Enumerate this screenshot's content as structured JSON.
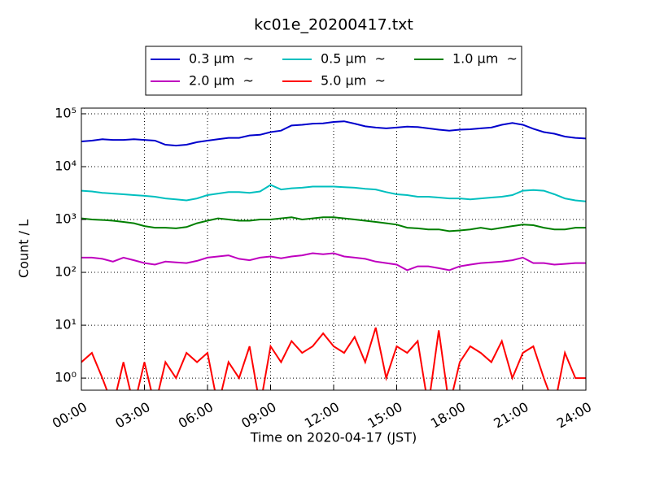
{
  "chart_data": {
    "type": "line",
    "title": "kc01e_20200417.txt",
    "x_label": "Time on 2020-04-17 (JST)",
    "y_label": "Count / L",
    "log_y": true,
    "grid": true,
    "legend": "upper center",
    "xlim": [
      0,
      24
    ],
    "xticks": [
      {
        "value": 0,
        "label": "00:00"
      },
      {
        "value": 3,
        "label": "03:00"
      },
      {
        "value": 6,
        "label": "06:00"
      },
      {
        "value": 9,
        "label": "09:00"
      },
      {
        "value": 12,
        "label": "12:00"
      },
      {
        "value": 15,
        "label": "15:00"
      },
      {
        "value": 18,
        "label": "18:00"
      },
      {
        "value": 21,
        "label": "21:00"
      },
      {
        "value": 24,
        "label": "24:00"
      }
    ],
    "ylim": [
      0.59,
      128000
    ],
    "yticks": [
      {
        "value": 1,
        "label": "10⁰"
      },
      {
        "value": 10,
        "label": "10¹"
      },
      {
        "value": 100,
        "label": "10²"
      },
      {
        "value": 1000,
        "label": "10³"
      },
      {
        "value": 10000,
        "label": "10⁴"
      },
      {
        "value": 100000,
        "label": "10⁵"
      }
    ],
    "x": [
      0,
      0.5,
      1,
      1.5,
      2,
      2.5,
      3,
      3.5,
      4,
      4.5,
      5,
      5.5,
      6,
      6.5,
      7,
      7.5,
      8,
      8.5,
      9,
      9.5,
      10,
      10.5,
      11,
      11.5,
      12,
      12.5,
      13,
      13.5,
      14,
      14.5,
      15,
      15.5,
      16,
      16.5,
      17,
      17.5,
      18,
      18.5,
      19,
      19.5,
      20,
      20.5,
      21,
      21.5,
      22,
      22.5,
      23,
      23.5,
      24
    ],
    "series": [
      {
        "name": "0.3 μm  ~",
        "color": "#0000cc",
        "values": [
          30000,
          31000,
          33000,
          32000,
          32000,
          33000,
          32000,
          31000,
          26000,
          25000,
          26000,
          29000,
          31000,
          33000,
          35000,
          35000,
          39000,
          40000,
          45000,
          48000,
          60000,
          62000,
          65000,
          66000,
          70000,
          72000,
          65000,
          58000,
          55000,
          53000,
          55000,
          57000,
          56000,
          53000,
          50000,
          48000,
          50000,
          51000,
          53000,
          55000,
          62000,
          67000,
          62000,
          52000,
          45000,
          42000,
          37000,
          35000,
          34000
        ]
      },
      {
        "name": "0.5 μm  ~",
        "color": "#00bfbf",
        "values": [
          3500,
          3400,
          3200,
          3100,
          3000,
          2900,
          2800,
          2700,
          2500,
          2400,
          2300,
          2500,
          2900,
          3100,
          3300,
          3300,
          3200,
          3400,
          4500,
          3700,
          3900,
          4000,
          4200,
          4200,
          4200,
          4100,
          4000,
          3800,
          3700,
          3300,
          3000,
          2900,
          2700,
          2700,
          2600,
          2500,
          2500,
          2400,
          2500,
          2600,
          2700,
          2900,
          3500,
          3600,
          3500,
          3000,
          2500,
          2300,
          2200
        ]
      },
      {
        "name": "1.0 μm  ~",
        "color": "#007f00",
        "values": [
          1050,
          1000,
          980,
          950,
          900,
          850,
          750,
          700,
          700,
          680,
          720,
          850,
          950,
          1050,
          1000,
          950,
          950,
          1000,
          1000,
          1050,
          1100,
          1000,
          1050,
          1100,
          1100,
          1050,
          1000,
          950,
          900,
          850,
          800,
          700,
          680,
          650,
          650,
          600,
          620,
          650,
          700,
          650,
          700,
          750,
          800,
          780,
          700,
          650,
          650,
          700,
          700
        ]
      },
      {
        "name": "2.0 μm  ~",
        "color": "#bf00bf",
        "values": [
          190,
          190,
          180,
          160,
          190,
          170,
          150,
          140,
          160,
          155,
          150,
          165,
          190,
          200,
          210,
          180,
          170,
          190,
          200,
          185,
          200,
          210,
          230,
          220,
          230,
          200,
          190,
          180,
          160,
          150,
          140,
          110,
          130,
          130,
          120,
          110,
          130,
          140,
          150,
          155,
          160,
          170,
          190,
          150,
          150,
          140,
          145,
          150,
          150
        ]
      },
      {
        "name": "5.0 μm  ~",
        "color": "#ff0000",
        "values": [
          2,
          3,
          1,
          0,
          2,
          0,
          2,
          0,
          2,
          1,
          3,
          2,
          3,
          0,
          2,
          1,
          4,
          0,
          4,
          2,
          5,
          3,
          4,
          7,
          4,
          3,
          6,
          2,
          9,
          1,
          4,
          3,
          5,
          0,
          8,
          0,
          2,
          4,
          3,
          2,
          5,
          1,
          3,
          4,
          1,
          0,
          3,
          1,
          1
        ]
      }
    ]
  }
}
